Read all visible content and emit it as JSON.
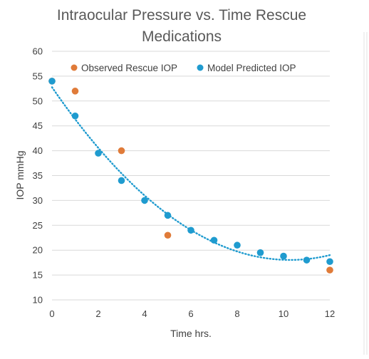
{
  "colors": {
    "observed": "#E07B39",
    "predicted": "#1F9BCF",
    "trendline": "#1F9BCF",
    "gridline": "#d9d9d9",
    "axis_text": "#404040",
    "title_text": "#595959"
  },
  "chart_data": {
    "type": "scatter",
    "title": [
      "Intraocular Pressure vs. Time Rescue",
      "Medications"
    ],
    "xlabel": "Time  hrs.",
    "ylabel": "IOP mmHg",
    "xlim": [
      0,
      12
    ],
    "ylim": [
      10,
      60
    ],
    "x_ticks": [
      "0",
      "2",
      "4",
      "6",
      "8",
      "10",
      "12"
    ],
    "y_ticks": [
      "10",
      "15",
      "20",
      "25",
      "30",
      "35",
      "40",
      "45",
      "50",
      "55",
      "60"
    ],
    "grid": {
      "horizontal": true,
      "vertical": false
    },
    "legend_position": "top",
    "series": [
      {
        "name": "Observed Rescue IOP",
        "color_key": "observed",
        "points": [
          {
            "x": 0,
            "y": 54
          },
          {
            "x": 1,
            "y": 52
          },
          {
            "x": 3,
            "y": 40
          },
          {
            "x": 5,
            "y": 23
          },
          {
            "x": 12,
            "y": 16
          }
        ]
      },
      {
        "name": "Model Predicted IOP",
        "color_key": "predicted",
        "trendline": "polynomial-2, dotted",
        "points": [
          {
            "x": 0,
            "y": 54
          },
          {
            "x": 1,
            "y": 47
          },
          {
            "x": 2,
            "y": 39.5
          },
          {
            "x": 3,
            "y": 34
          },
          {
            "x": 4,
            "y": 30
          },
          {
            "x": 5,
            "y": 27
          },
          {
            "x": 6,
            "y": 24
          },
          {
            "x": 7,
            "y": 22
          },
          {
            "x": 8,
            "y": 21
          },
          {
            "x": 9,
            "y": 19.5
          },
          {
            "x": 10,
            "y": 18.8
          },
          {
            "x": 11,
            "y": 18
          },
          {
            "x": 12,
            "y": 17.7
          }
        ]
      }
    ]
  }
}
